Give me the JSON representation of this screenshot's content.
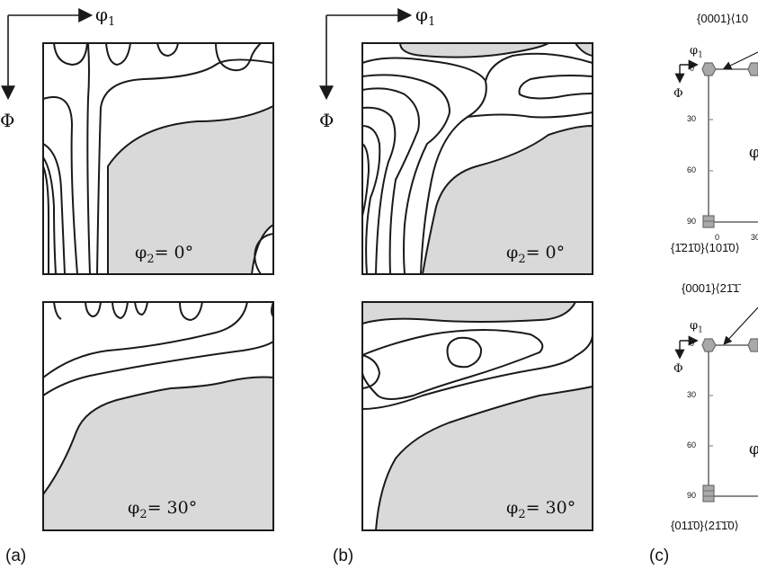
{
  "axes": {
    "phi1": "φ",
    "phi1_sub": "1",
    "Phi": "Φ"
  },
  "panels": {
    "a": "(a)",
    "b": "(b)",
    "c": "(c)"
  },
  "sections": {
    "top": {
      "phi2_label": "φ",
      "phi2_sub": "2",
      "phi2_value": "= 0°"
    },
    "bottom": {
      "phi2_label": "φ",
      "phi2_sub": "2",
      "phi2_value": "= 30°"
    }
  },
  "panel_c": {
    "top": {
      "annotation_top": "{0001}⟨10",
      "annotation_bottom": "{1̄21̄0}⟨101̄0⟩",
      "phi1": "φ",
      "phi1_sub": "1",
      "Phi": "Φ",
      "ticks": [
        "0",
        "30",
        "60",
        "90"
      ],
      "x_ticks": [
        "0",
        "30"
      ],
      "phi2_partial": "φ"
    },
    "bottom": {
      "annotation_top": "{0001}⟨21̄1̄",
      "annotation_bottom": "{011̄0}⟨21̄1̄0⟩",
      "phi1": "φ",
      "phi1_sub": "1",
      "Phi": "Φ",
      "ticks": [
        "0",
        "30",
        "60",
        "90"
      ],
      "phi2_partial": "φ"
    }
  },
  "colors": {
    "shade": "#d9d9d9",
    "line": "#1a1a1a",
    "marker": "#a9a9a9",
    "marker_stroke": "#6b6b6b"
  }
}
